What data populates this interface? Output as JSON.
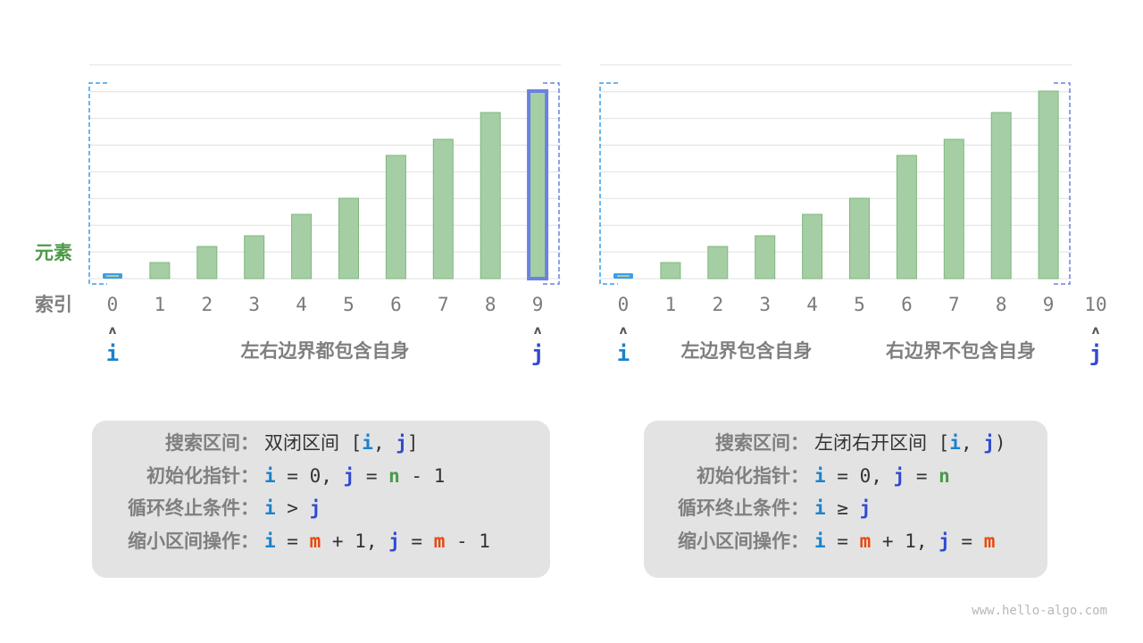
{
  "colors": {
    "bar_fill": "#a6cea5",
    "bar_stroke": "#7cb87b",
    "i_color": "#1a82cc",
    "j_color": "#2e4bd0",
    "n_color": "#4a9a4a",
    "m_color": "#e5490f",
    "label_gray": "#7f7f7f",
    "element_label": "#4e9a4a",
    "i_bracket": "#3a9ee8",
    "j_bracket": "#6a82e0"
  },
  "labels": {
    "element": "元素",
    "index": "索引"
  },
  "charts": [
    {
      "values": [
        1,
        3,
        6,
        8,
        12,
        15,
        23,
        26,
        31,
        35
      ],
      "indices": [
        "0",
        "1",
        "2",
        "3",
        "4",
        "5",
        "6",
        "7",
        "8",
        "9"
      ],
      "i_index": 0,
      "j_index": 9,
      "pointer_i": "i",
      "pointer_j": "j",
      "captions": [
        "左右边界都包含自身"
      ]
    },
    {
      "values": [
        1,
        3,
        6,
        8,
        12,
        15,
        23,
        26,
        31,
        35
      ],
      "indices": [
        "0",
        "1",
        "2",
        "3",
        "4",
        "5",
        "6",
        "7",
        "8",
        "9",
        "10"
      ],
      "i_index": 0,
      "j_index": 10,
      "pointer_i": "i",
      "pointer_j": "j",
      "captions": [
        "左边界包含自身",
        "右边界不包含自身"
      ]
    }
  ],
  "left_box": {
    "labels": [
      "搜索区间：",
      "初始化指针：",
      "循环终止条件：",
      "缩小区间操作："
    ],
    "rows": [
      [
        [
          "t",
          "双闭区间 ["
        ],
        [
          "i",
          "i"
        ],
        [
          "t",
          ", "
        ],
        [
          "j",
          "j"
        ],
        [
          "t",
          "]"
        ]
      ],
      [
        [
          "i",
          "i"
        ],
        [
          "t",
          " = 0, "
        ],
        [
          "j",
          "j"
        ],
        [
          "t",
          " = "
        ],
        [
          "n",
          "n"
        ],
        [
          "t",
          " - 1"
        ]
      ],
      [
        [
          "i",
          "i"
        ],
        [
          "t",
          " > "
        ],
        [
          "j",
          "j"
        ]
      ],
      [
        [
          "i",
          "i"
        ],
        [
          "t",
          " = "
        ],
        [
          "m",
          "m"
        ],
        [
          "t",
          " + 1, "
        ],
        [
          "j",
          "j"
        ],
        [
          "t",
          " = "
        ],
        [
          "m",
          "m"
        ],
        [
          "t",
          " - 1"
        ]
      ]
    ]
  },
  "right_box": {
    "labels": [
      "搜索区间：",
      "初始化指针：",
      "循环终止条件：",
      "缩小区间操作："
    ],
    "rows": [
      [
        [
          "t",
          "左闭右开区间 ["
        ],
        [
          "i",
          "i"
        ],
        [
          "t",
          ", "
        ],
        [
          "j",
          "j"
        ],
        [
          "t",
          ")"
        ]
      ],
      [
        [
          "i",
          "i"
        ],
        [
          "t",
          " = 0, "
        ],
        [
          "j",
          "j"
        ],
        [
          "t",
          " = "
        ],
        [
          "n",
          "n"
        ]
      ],
      [
        [
          "i",
          "i"
        ],
        [
          "t",
          " ≥ "
        ],
        [
          "j",
          "j"
        ]
      ],
      [
        [
          "i",
          "i"
        ],
        [
          "t",
          " = "
        ],
        [
          "m",
          "m"
        ],
        [
          "t",
          " + 1, "
        ],
        [
          "j",
          "j"
        ],
        [
          "t",
          " = "
        ],
        [
          "m",
          "m"
        ]
      ]
    ]
  },
  "watermark": "www.hello-algo.com"
}
